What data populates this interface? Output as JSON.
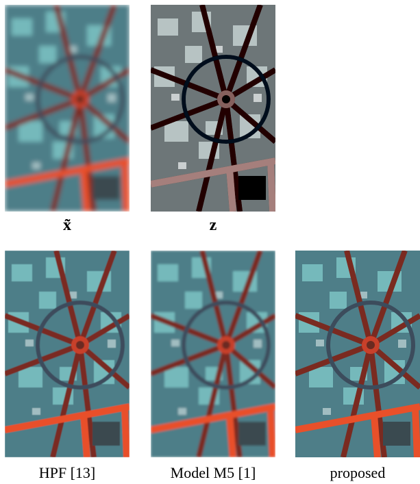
{
  "panels": [
    {
      "caption": "x̃"
    },
    {
      "caption": "z"
    },
    {
      "caption": "HPF [13]"
    },
    {
      "caption": "Model M5 [1]"
    },
    {
      "caption": "proposed"
    }
  ]
}
